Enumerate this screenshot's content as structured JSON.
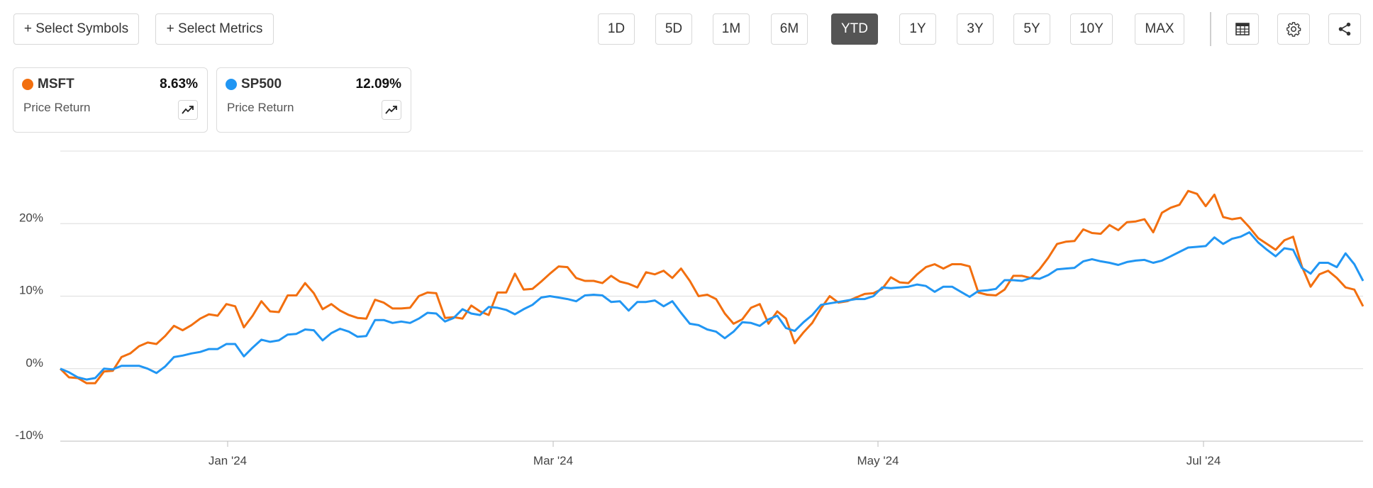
{
  "toolbar": {
    "select_symbols": "+ Select Symbols",
    "select_metrics": "+ Select Metrics",
    "periods": [
      "1D",
      "5D",
      "1M",
      "6M",
      "YTD",
      "1Y",
      "3Y",
      "5Y",
      "10Y",
      "MAX"
    ],
    "active_period": "YTD",
    "icons": [
      "table-icon",
      "gear-icon",
      "share-icon"
    ]
  },
  "legend_cards": [
    {
      "symbol": "MSFT",
      "value": "8.63%",
      "metric": "Price Return",
      "color": "#f26f0f"
    },
    {
      "symbol": "SP500",
      "value": "12.09%",
      "metric": "Price Return",
      "color": "#2196f3"
    }
  ],
  "chart_data": {
    "type": "line",
    "title": "",
    "xlabel": "",
    "ylabel": "",
    "ylim": [
      -10,
      30
    ],
    "y_ticks": [
      "-10%",
      "0%",
      "10%",
      "20%"
    ],
    "x_ticks": [
      "Jan '24",
      "Mar '24",
      "May '24",
      "Jul '24"
    ],
    "grid": true,
    "series": [
      {
        "name": "MSFT",
        "color": "#f26f0f",
        "values": [
          0,
          -1.2,
          -1.3,
          -2,
          -2,
          -0.4,
          -0.3,
          1.6,
          2.1,
          3.1,
          3.6,
          3.4,
          4.5,
          5.9,
          5.3,
          6,
          6.9,
          7.5,
          7.3,
          8.9,
          8.6,
          5.7,
          7.3,
          9.3,
          7.9,
          7.8,
          10.1,
          10.1,
          11.8,
          10.4,
          8.2,
          8.9,
          8,
          7.4,
          7,
          6.9,
          9.5,
          9.1,
          8.3,
          8.3,
          8.4,
          10,
          10.5,
          10.4,
          7,
          7.1,
          6.9,
          8.7,
          7.9,
          7.4,
          10.5,
          10.5,
          13.1,
          10.9,
          11,
          12,
          13.1,
          14.1,
          14,
          12.5,
          12.1,
          12.1,
          11.8,
          12.8,
          12,
          11.7,
          11.2,
          13.3,
          13,
          13.5,
          12.5,
          13.8,
          12.1,
          10,
          10.2,
          9.6,
          7.6,
          6.2,
          6.8,
          8.4,
          8.9,
          6.2,
          7.9,
          6.9,
          3.5,
          5,
          6.3,
          8.3,
          10,
          9.1,
          9.3,
          9.8,
          10.3,
          10.4,
          11,
          12.6,
          11.9,
          11.8,
          13,
          14,
          14.4,
          13.8,
          14.4,
          14.4,
          14.1,
          10.5,
          10.2,
          10.1,
          10.9,
          12.8,
          12.8,
          12.5,
          13.7,
          15.3,
          17.2,
          17.5,
          17.6,
          19.2,
          18.7,
          18.6,
          19.8,
          19.1,
          20.2,
          20.3,
          20.6,
          18.8,
          21.5,
          22.2,
          22.6,
          24.5,
          24.1,
          22.4,
          24,
          20.9,
          20.6,
          20.8,
          19.5,
          18,
          17.2,
          16.4,
          17.7,
          18.2,
          14.1,
          11.3,
          13,
          13.5,
          12.5,
          11.2,
          10.9,
          8.6
        ]
      },
      {
        "name": "SP500",
        "color": "#2196f3",
        "values": [
          0,
          -0.5,
          -1.2,
          -1.5,
          -1.3,
          0,
          -0.1,
          0.4,
          0.4,
          0.4,
          0,
          -0.6,
          0.3,
          1.6,
          1.8,
          2.1,
          2.3,
          2.7,
          2.7,
          3.4,
          3.4,
          1.7,
          2.9,
          4,
          3.7,
          3.9,
          4.7,
          4.8,
          5.4,
          5.3,
          3.9,
          4.9,
          5.5,
          5.1,
          4.4,
          4.5,
          6.7,
          6.7,
          6.3,
          6.5,
          6.3,
          6.9,
          7.7,
          7.6,
          6.5,
          7,
          8.2,
          7.6,
          7.4,
          8.5,
          8.4,
          8.1,
          7.5,
          8.2,
          8.8,
          9.8,
          10,
          9.8,
          9.6,
          9.3,
          10.1,
          10.2,
          10.1,
          9.2,
          9.3,
          8,
          9.2,
          9.2,
          9.4,
          8.6,
          9.3,
          7.7,
          6.2,
          6,
          5.4,
          5.1,
          4.2,
          5.1,
          6.4,
          6.3,
          5.9,
          6.8,
          7.3,
          5.6,
          5.2,
          6.4,
          7.4,
          8.8,
          9,
          9.2,
          9.4,
          9.6,
          9.6,
          10,
          11.2,
          11.1,
          11.2,
          11.3,
          11.6,
          11.4,
          10.6,
          11.3,
          11.3,
          10.6,
          9.9,
          10.7,
          10.8,
          11,
          12.2,
          12.2,
          12.1,
          12.5,
          12.4,
          12.9,
          13.7,
          13.8,
          13.9,
          14.8,
          15.1,
          14.8,
          14.6,
          14.3,
          14.7,
          14.9,
          15,
          14.6,
          14.9,
          15.5,
          16.1,
          16.7,
          16.8,
          16.9,
          18.1,
          17.2,
          17.9,
          18.2,
          18.8,
          17.4,
          16.4,
          15.5,
          16.6,
          16.4,
          13.9,
          13.1,
          14.6,
          14.6,
          14,
          15.9,
          14.4,
          12.1
        ]
      }
    ]
  }
}
